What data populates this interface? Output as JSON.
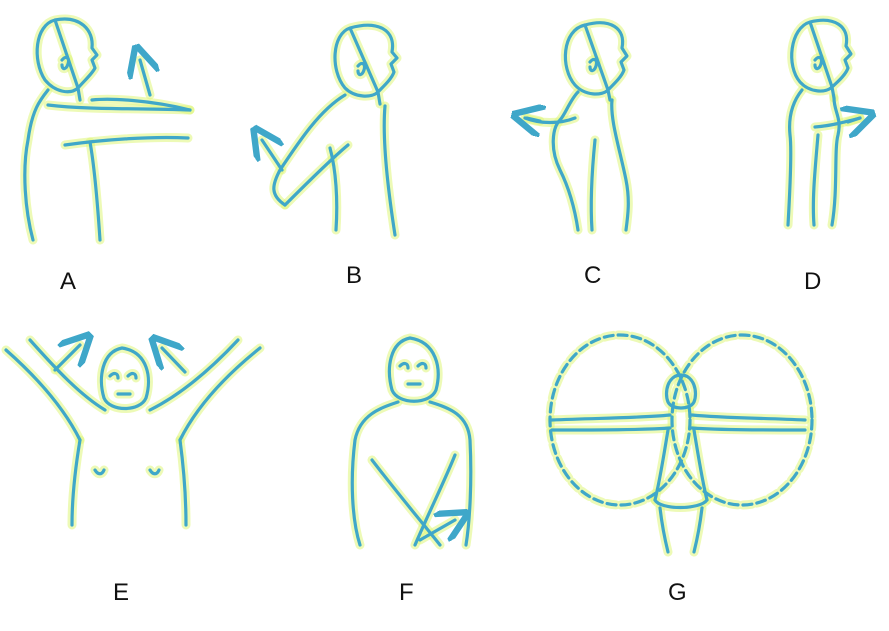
{
  "colors": {
    "line": "#3fa7c9",
    "glow": "#dff67a",
    "label": "#111111"
  },
  "panels": [
    {
      "id": "A",
      "label": "A"
    },
    {
      "id": "B",
      "label": "B"
    },
    {
      "id": "C",
      "label": "C"
    },
    {
      "id": "D",
      "label": "D"
    },
    {
      "id": "E",
      "label": "E"
    },
    {
      "id": "F",
      "label": "F"
    },
    {
      "id": "G",
      "label": "G"
    }
  ]
}
